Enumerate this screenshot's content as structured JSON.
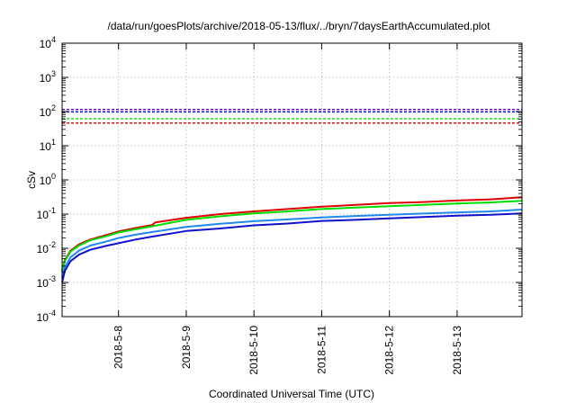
{
  "chart_data": {
    "type": "line",
    "title": "/data/run/goesPlots/archive/2018-05-13/flux/../bryn/7daysEarthAccumulated.plot",
    "xlabel": "Coordinated Universal Time (UTC)",
    "ylabel": "cSv",
    "y_scale": "log",
    "ylim": [
      0.0001,
      10000
    ],
    "xlim": [
      "2018-05-07 04:00",
      "2018-05-13 23:00"
    ],
    "grid": true,
    "legend": "none",
    "y_ticks": [
      {
        "base": "10",
        "exp": "4"
      },
      {
        "base": "10",
        "exp": "3"
      },
      {
        "base": "10",
        "exp": "2"
      },
      {
        "base": "10",
        "exp": "1"
      },
      {
        "base": "10",
        "exp": "0"
      },
      {
        "base": "10",
        "exp": "-1"
      },
      {
        "base": "10",
        "exp": "-2"
      },
      {
        "base": "10",
        "exp": "-3"
      },
      {
        "base": "10",
        "exp": "-4"
      }
    ],
    "x_ticks": [
      "2018-5-8",
      "2018-5-9",
      "2018-5-10",
      "2018-5-11",
      "2018-5-12",
      "2018-5-13"
    ],
    "x_tick_dates": [
      "2018-05-08",
      "2018-05-09",
      "2018-05-10",
      "2018-05-11",
      "2018-05-12",
      "2018-05-13"
    ],
    "thresholds": [
      {
        "color": "#7700cc",
        "value": 115
      },
      {
        "color": "#0000dd",
        "value": 98
      },
      {
        "color": "#00dd00",
        "value": 62
      },
      {
        "color": "#dd0000",
        "value": 46
      }
    ],
    "series": [
      {
        "color": "#dd0000",
        "x": [
          "2018-05-07 04:00",
          "2018-05-07 05:00",
          "2018-05-07 07:00",
          "2018-05-07 10:00",
          "2018-05-07 14:00",
          "2018-05-07 20:00",
          "2018-05-08 00:00",
          "2018-05-08 06:00",
          "2018-05-08 12:00",
          "2018-05-08 13:00",
          "2018-05-09 00:00",
          "2018-05-09 12:00",
          "2018-05-10 00:00",
          "2018-05-10 12:00",
          "2018-05-11 00:00",
          "2018-05-11 12:00",
          "2018-05-12 00:00",
          "2018-05-12 12:00",
          "2018-05-13 00:00",
          "2018-05-13 12:00",
          "2018-05-13 23:00"
        ],
        "y": [
          0.0022,
          0.0045,
          0.0085,
          0.013,
          0.018,
          0.025,
          0.031,
          0.039,
          0.048,
          0.057,
          0.078,
          0.1,
          0.12,
          0.14,
          0.165,
          0.185,
          0.21,
          0.225,
          0.25,
          0.27,
          0.31
        ]
      },
      {
        "color": "#00dd00",
        "x": [
          "2018-05-07 04:00",
          "2018-05-07 05:00",
          "2018-05-07 07:00",
          "2018-05-07 10:00",
          "2018-05-07 14:00",
          "2018-05-07 20:00",
          "2018-05-08 00:00",
          "2018-05-08 06:00",
          "2018-05-08 12:00",
          "2018-05-09 00:00",
          "2018-05-09 12:00",
          "2018-05-10 00:00",
          "2018-05-10 12:00",
          "2018-05-11 00:00",
          "2018-05-11 12:00",
          "2018-05-12 00:00",
          "2018-05-12 12:00",
          "2018-05-13 00:00",
          "2018-05-13 12:00",
          "2018-05-13 23:00"
        ],
        "y": [
          0.002,
          0.0042,
          0.008,
          0.012,
          0.017,
          0.023,
          0.029,
          0.036,
          0.044,
          0.068,
          0.086,
          0.105,
          0.12,
          0.14,
          0.155,
          0.17,
          0.185,
          0.205,
          0.22,
          0.245
        ]
      },
      {
        "color": "#2288ee",
        "x": [
          "2018-05-07 04:00",
          "2018-05-07 05:00",
          "2018-05-07 07:00",
          "2018-05-07 10:00",
          "2018-05-07 14:00",
          "2018-05-07 20:00",
          "2018-05-08 00:00",
          "2018-05-08 06:00",
          "2018-05-08 12:00",
          "2018-05-09 00:00",
          "2018-05-09 12:00",
          "2018-05-10 00:00",
          "2018-05-10 12:00",
          "2018-05-11 00:00",
          "2018-05-11 12:00",
          "2018-05-12 00:00",
          "2018-05-12 12:00",
          "2018-05-13 00:00",
          "2018-05-13 12:00",
          "2018-05-13 23:00"
        ],
        "y": [
          0.0014,
          0.0028,
          0.0055,
          0.0085,
          0.012,
          0.016,
          0.02,
          0.025,
          0.03,
          0.042,
          0.052,
          0.062,
          0.07,
          0.08,
          0.088,
          0.096,
          0.104,
          0.112,
          0.12,
          0.135
        ]
      },
      {
        "color": "#1111cc",
        "x": [
          "2018-05-07 04:00",
          "2018-05-07 05:00",
          "2018-05-07 07:00",
          "2018-05-07 10:00",
          "2018-05-07 14:00",
          "2018-05-07 20:00",
          "2018-05-08 00:00",
          "2018-05-08 06:00",
          "2018-05-08 12:00",
          "2018-05-09 00:00",
          "2018-05-09 12:00",
          "2018-05-10 00:00",
          "2018-05-10 12:00",
          "2018-05-11 00:00",
          "2018-05-11 12:00",
          "2018-05-12 00:00",
          "2018-05-12 12:00",
          "2018-05-13 00:00",
          "2018-05-13 12:00",
          "2018-05-13 23:00"
        ],
        "y": [
          0.001,
          0.0022,
          0.0042,
          0.0065,
          0.009,
          0.012,
          0.014,
          0.018,
          0.022,
          0.032,
          0.038,
          0.047,
          0.053,
          0.063,
          0.068,
          0.075,
          0.082,
          0.09,
          0.095,
          0.105
        ]
      }
    ]
  }
}
